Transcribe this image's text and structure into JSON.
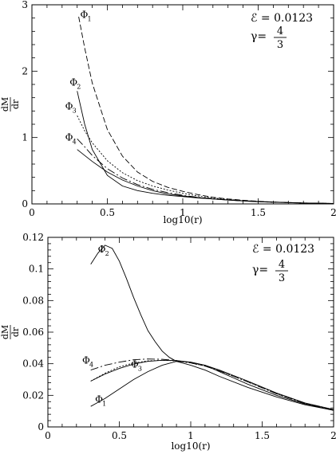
{
  "chart_data": [
    {
      "type": "line",
      "xlabel": "log10(r)",
      "ylabel_num": "dM",
      "ylabel_den": "dr",
      "xlim": [
        0,
        2
      ],
      "ylim": [
        0,
        3
      ],
      "xticks": [
        0,
        0.5,
        1,
        1.5,
        2
      ],
      "xtick_labels": [
        "0",
        "0.5",
        "1",
        "1.5",
        "2"
      ],
      "yticks": [
        0,
        1,
        2,
        3
      ],
      "ytick_labels": [
        "0",
        "1",
        "2",
        "3"
      ],
      "eps_line": "ℰ  =  0.0123",
      "gamma_prefix": "γ=",
      "gamma_num": "4",
      "gamma_den": "3",
      "series": [
        {
          "name": "Φ1",
          "label_main": "Φ",
          "label_sub": "1",
          "label_at": [
            0.32,
            2.85
          ],
          "dash": "7,3",
          "points": [
            [
              0.31,
              2.82
            ],
            [
              0.35,
              2.35
            ],
            [
              0.4,
              1.82
            ],
            [
              0.5,
              1.12
            ],
            [
              0.6,
              0.72
            ],
            [
              0.7,
              0.48
            ],
            [
              0.8,
              0.34
            ],
            [
              0.9,
              0.25
            ],
            [
              1.0,
              0.19
            ],
            [
              1.1,
              0.14
            ],
            [
              1.2,
              0.1
            ],
            [
              1.3,
              0.075
            ],
            [
              1.4,
              0.055
            ],
            [
              1.5,
              0.04
            ],
            [
              1.6,
              0.028
            ],
            [
              1.8,
              0.013
            ],
            [
              2.0,
              0.005
            ]
          ]
        },
        {
          "name": "Φ2",
          "label_main": "Φ",
          "label_sub": "2",
          "label_at": [
            0.25,
            1.83
          ],
          "dash": "",
          "points": [
            [
              0.3,
              1.7
            ],
            [
              0.35,
              1.2
            ],
            [
              0.4,
              0.82
            ],
            [
              0.5,
              0.43
            ],
            [
              0.6,
              0.27
            ],
            [
              0.7,
              0.2
            ],
            [
              0.8,
              0.16
            ],
            [
              0.9,
              0.13
            ],
            [
              1.0,
              0.11
            ],
            [
              1.1,
              0.09
            ],
            [
              1.2,
              0.075
            ],
            [
              1.3,
              0.06
            ],
            [
              1.4,
              0.047
            ],
            [
              1.5,
              0.037
            ],
            [
              1.6,
              0.028
            ],
            [
              1.8,
              0.015
            ],
            [
              2.0,
              0.007
            ]
          ]
        },
        {
          "name": "Φ3",
          "label_main": "Φ",
          "label_sub": "3",
          "label_at": [
            0.22,
            1.47
          ],
          "dash": "2,2",
          "points": [
            [
              0.3,
              1.33
            ],
            [
              0.35,
              1.1
            ],
            [
              0.4,
              0.92
            ],
            [
              0.5,
              0.65
            ],
            [
              0.6,
              0.47
            ],
            [
              0.7,
              0.35
            ],
            [
              0.8,
              0.27
            ],
            [
              0.9,
              0.21
            ],
            [
              1.0,
              0.16
            ],
            [
              1.1,
              0.12
            ],
            [
              1.2,
              0.09
            ],
            [
              1.3,
              0.068
            ],
            [
              1.4,
              0.05
            ],
            [
              1.5,
              0.037
            ],
            [
              1.6,
              0.027
            ],
            [
              1.8,
              0.014
            ],
            [
              2.0,
              0.006
            ]
          ]
        },
        {
          "name": "Φ4",
          "label_main": "Φ",
          "label_sub": "4",
          "label_at": [
            0.22,
            1.0
          ],
          "dash": "10,3,2,3",
          "points": [
            [
              0.3,
              0.98
            ],
            [
              0.35,
              0.86
            ],
            [
              0.4,
              0.73
            ],
            [
              0.5,
              0.53
            ],
            [
              0.6,
              0.39
            ],
            [
              0.7,
              0.29
            ],
            [
              0.8,
              0.22
            ],
            [
              0.9,
              0.17
            ],
            [
              1.0,
              0.13
            ],
            [
              1.1,
              0.1
            ],
            [
              1.2,
              0.078
            ],
            [
              1.3,
              0.06
            ],
            [
              1.4,
              0.045
            ],
            [
              1.5,
              0.034
            ],
            [
              1.6,
              0.025
            ],
            [
              1.8,
              0.013
            ],
            [
              2.0,
              0.006
            ]
          ]
        },
        {
          "name": "Φ5",
          "label_main": "",
          "label_sub": "",
          "label_at": null,
          "dash": "",
          "points": [
            [
              0.3,
              0.82
            ],
            [
              0.35,
              0.73
            ],
            [
              0.4,
              0.64
            ],
            [
              0.5,
              0.48
            ],
            [
              0.6,
              0.36
            ],
            [
              0.7,
              0.27
            ],
            [
              0.8,
              0.2
            ],
            [
              0.9,
              0.15
            ],
            [
              1.0,
              0.12
            ],
            [
              1.1,
              0.095
            ],
            [
              1.2,
              0.075
            ],
            [
              1.3,
              0.058
            ],
            [
              1.4,
              0.044
            ],
            [
              1.5,
              0.033
            ],
            [
              1.6,
              0.025
            ],
            [
              1.8,
              0.013
            ],
            [
              2.0,
              0.006
            ]
          ]
        }
      ]
    },
    {
      "type": "line",
      "xlabel": "log10(r)",
      "ylabel_num": "dM",
      "ylabel_den": "dr",
      "xlim": [
        0,
        2
      ],
      "ylim": [
        0,
        0.12
      ],
      "xticks": [
        0,
        0.5,
        1,
        1.5,
        2
      ],
      "xtick_labels": [
        "0",
        "0.5",
        "1",
        "1.5",
        "2"
      ],
      "yticks": [
        0,
        0.02,
        0.04,
        0.06,
        0.08,
        0.1,
        0.12
      ],
      "ytick_labels": [
        "0",
        "0.02",
        "0.04",
        "0.06",
        "0.08",
        "0.1",
        "0.12"
      ],
      "eps_line": "ℰ  =  0.0123",
      "gamma_prefix": "γ=",
      "gamma_num": "4",
      "gamma_den": "3",
      "series": [
        {
          "name": "Φ2",
          "label_main": "Φ",
          "label_sub": "2",
          "label_at": [
            0.35,
            0.1125
          ],
          "dash": "",
          "points": [
            [
              0.3,
              0.103
            ],
            [
              0.35,
              0.11
            ],
            [
              0.4,
              0.115
            ],
            [
              0.45,
              0.113
            ],
            [
              0.5,
              0.105
            ],
            [
              0.55,
              0.094
            ],
            [
              0.6,
              0.082
            ],
            [
              0.65,
              0.071
            ],
            [
              0.7,
              0.061
            ],
            [
              0.75,
              0.054
            ],
            [
              0.8,
              0.048
            ],
            [
              0.85,
              0.044
            ],
            [
              0.9,
              0.0415
            ],
            [
              1.0,
              0.039
            ],
            [
              1.1,
              0.036
            ],
            [
              1.2,
              0.032
            ],
            [
              1.4,
              0.025
            ],
            [
              1.6,
              0.019
            ],
            [
              1.8,
              0.014
            ],
            [
              2.0,
              0.0105
            ]
          ]
        },
        {
          "name": "Φ1",
          "label_main": "Φ",
          "label_sub": "1",
          "label_at": [
            0.33,
            0.0175
          ],
          "dash": "",
          "points": [
            [
              0.3,
              0.013
            ],
            [
              0.4,
              0.018
            ],
            [
              0.5,
              0.024
            ],
            [
              0.6,
              0.03
            ],
            [
              0.7,
              0.035
            ],
            [
              0.8,
              0.039
            ],
            [
              0.9,
              0.0415
            ],
            [
              1.0,
              0.041
            ],
            [
              1.1,
              0.039
            ],
            [
              1.2,
              0.035
            ],
            [
              1.3,
              0.031
            ],
            [
              1.4,
              0.027
            ],
            [
              1.6,
              0.02
            ],
            [
              1.8,
              0.0145
            ],
            [
              2.0,
              0.0105
            ]
          ]
        },
        {
          "name": "Φ3",
          "label_main": "Φ",
          "label_sub": "3",
          "label_at": [
            0.58,
            0.0395
          ],
          "dash": "2,2",
          "points": [
            [
              0.3,
              0.029
            ],
            [
              0.4,
              0.034
            ],
            [
              0.5,
              0.038
            ],
            [
              0.6,
              0.0405
            ],
            [
              0.7,
              0.0418
            ],
            [
              0.8,
              0.0422
            ],
            [
              0.9,
              0.0418
            ],
            [
              1.0,
              0.0405
            ],
            [
              1.1,
              0.0385
            ],
            [
              1.2,
              0.0355
            ],
            [
              1.3,
              0.032
            ],
            [
              1.4,
              0.0285
            ],
            [
              1.6,
              0.021
            ],
            [
              1.8,
              0.015
            ],
            [
              2.0,
              0.0108
            ]
          ]
        },
        {
          "name": "Φ4",
          "label_main": "Φ",
          "label_sub": "4",
          "label_at": [
            0.24,
            0.042
          ],
          "dash": "10,3,2,3",
          "points": [
            [
              0.3,
              0.036
            ],
            [
              0.4,
              0.039
            ],
            [
              0.5,
              0.041
            ],
            [
              0.6,
              0.0425
            ],
            [
              0.7,
              0.043
            ],
            [
              0.8,
              0.0428
            ],
            [
              0.9,
              0.042
            ],
            [
              1.0,
              0.0405
            ],
            [
              1.1,
              0.0385
            ],
            [
              1.2,
              0.0355
            ],
            [
              1.3,
              0.032
            ],
            [
              1.4,
              0.0285
            ],
            [
              1.6,
              0.021
            ],
            [
              1.8,
              0.015
            ],
            [
              2.0,
              0.0108
            ]
          ]
        },
        {
          "name": "Φ5",
          "label_main": "",
          "label_sub": "",
          "label_at": null,
          "dash": "",
          "points": [
            [
              0.3,
              0.029
            ],
            [
              0.4,
              0.0335
            ],
            [
              0.5,
              0.037
            ],
            [
              0.6,
              0.0398
            ],
            [
              0.7,
              0.0415
            ],
            [
              0.8,
              0.0422
            ],
            [
              0.9,
              0.042
            ],
            [
              1.0,
              0.041
            ],
            [
              1.1,
              0.039
            ],
            [
              1.2,
              0.036
            ],
            [
              1.3,
              0.0325
            ],
            [
              1.4,
              0.029
            ],
            [
              1.6,
              0.0215
            ],
            [
              1.8,
              0.0152
            ],
            [
              2.0,
              0.011
            ]
          ]
        }
      ]
    }
  ]
}
